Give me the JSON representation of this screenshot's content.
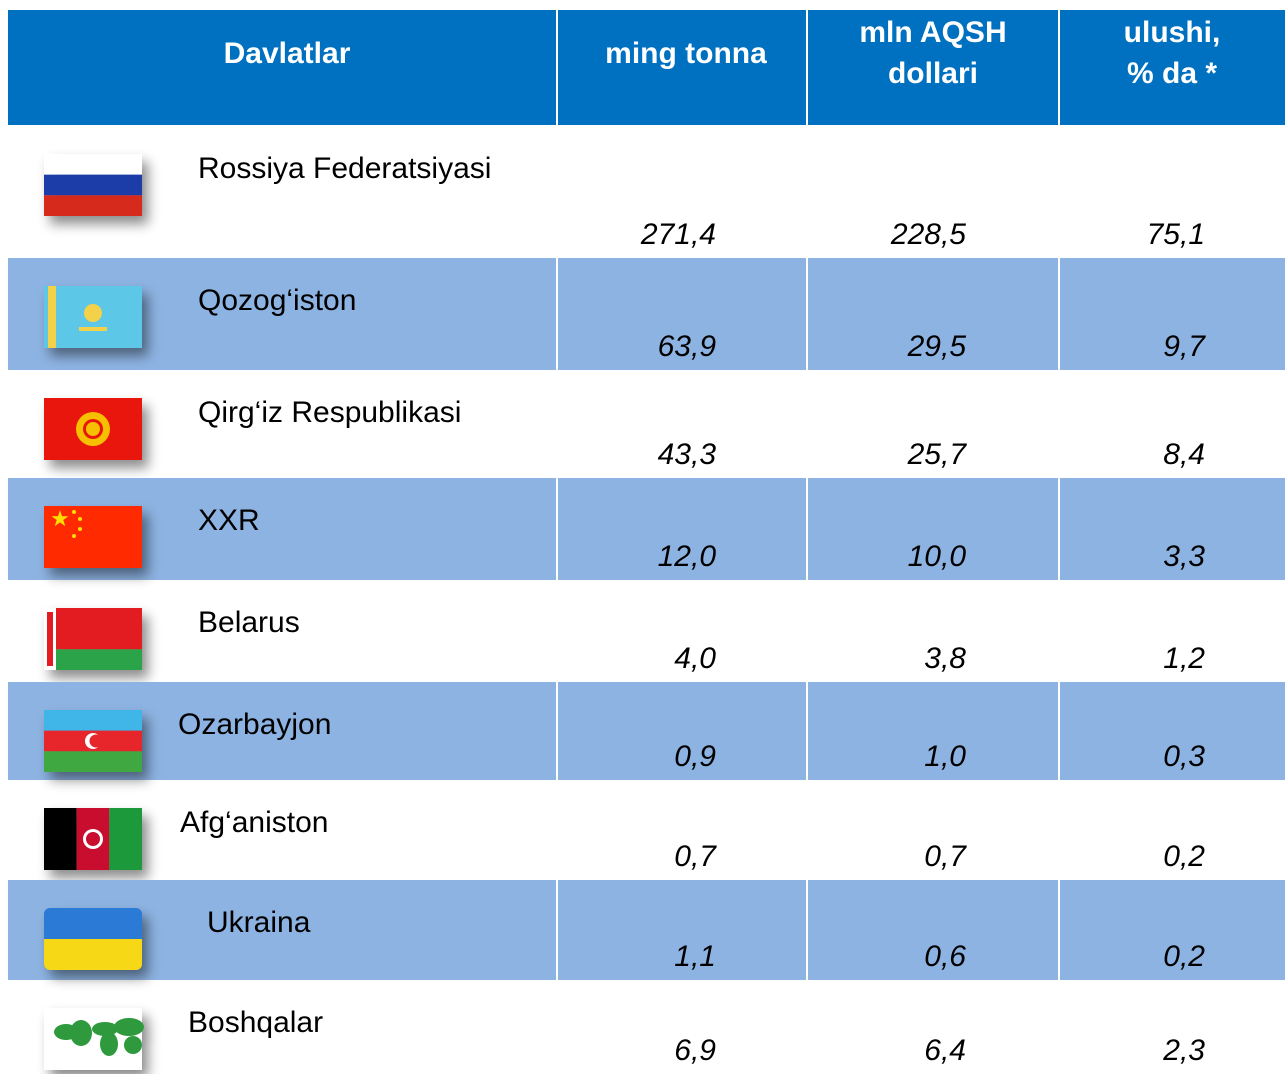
{
  "table": {
    "header": [
      [
        "Davlatlar"
      ],
      [
        "ming tonna"
      ],
      [
        "mln AQSH",
        "dollari"
      ],
      [
        "ulushi,",
        "% da *"
      ]
    ],
    "rows": [
      [
        "Rossiya Federatsiyasi",
        "271,4",
        "228,5",
        "75,1"
      ],
      [
        "Qozog‘iston",
        "63,9",
        "29,5",
        "9,7"
      ],
      [
        "Qirg‘iz Respublikasi",
        "43,3",
        "25,7",
        "8,4"
      ],
      [
        "XXR",
        "12,0",
        "10,0",
        "3,3"
      ],
      [
        "Belarus",
        "4,0",
        "3,8",
        "1,2"
      ],
      [
        "Ozarbayjon",
        "0,9",
        "1,0",
        "0,3"
      ],
      [
        "Afg‘aniston",
        "0,7",
        "0,7",
        "0,2"
      ],
      [
        "Ukraina",
        "1,1",
        "0,6",
        "0,2"
      ],
      [
        "Boshqalar",
        "6,9",
        "6,4",
        "2,3"
      ]
    ]
  }
}
